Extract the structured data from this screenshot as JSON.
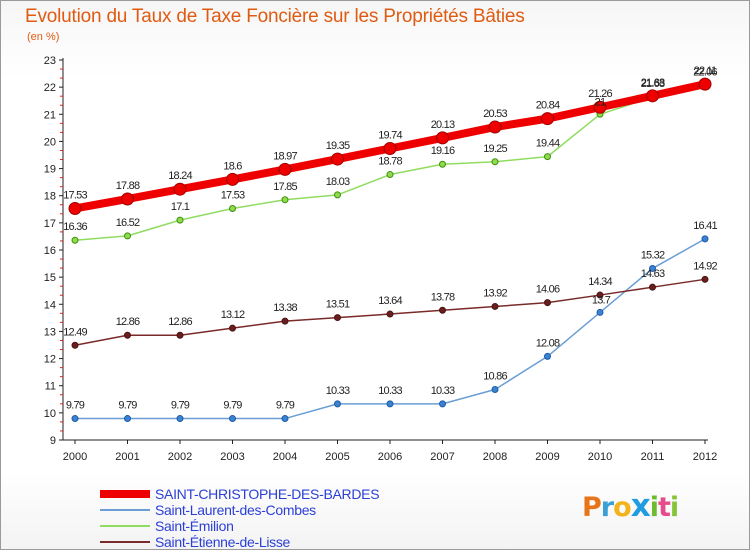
{
  "page": {
    "title": "Evolution du Taux de Taxe Foncière sur les Propriétés Bâties",
    "subtitle": "(en %)"
  },
  "logo": {
    "letters": [
      "P",
      "r",
      "o",
      "x",
      "i",
      "t",
      "i"
    ],
    "colors": [
      "#e8741a",
      "#3aa0d8",
      "#f2b31b",
      "#1f9de0",
      "#6dbb2f",
      "#e54c8c",
      "#88c43a"
    ]
  },
  "chart_data": {
    "type": "line",
    "x": [
      "2000",
      "2001",
      "2002",
      "2003",
      "2004",
      "2005",
      "2006",
      "2007",
      "2008",
      "2009",
      "2010",
      "2011",
      "2012"
    ],
    "ylim": [
      9,
      23
    ],
    "yticks": [
      "9",
      "10",
      "11",
      "12",
      "13",
      "14",
      "15",
      "16",
      "17",
      "18",
      "19",
      "20",
      "21",
      "22",
      "23"
    ],
    "grid": false,
    "legend_position": "bottom",
    "series": [
      {
        "name": "SAINT-CHRISTOPHE-DES-BARDES",
        "color": "#ee0000",
        "width": 8,
        "values": [
          17.53,
          17.88,
          18.24,
          18.6,
          18.97,
          19.35,
          19.74,
          20.13,
          20.53,
          20.84,
          21.26,
          21.68,
          22.11
        ],
        "labels": [
          "17.53",
          "17.88",
          "18.24",
          "18.6",
          "18.97",
          "19.35",
          "19.74",
          "20.13",
          "20.53",
          "20.84",
          "21.26",
          "21.68",
          "22.11"
        ]
      },
      {
        "name": "Saint-Laurent-des-Combes",
        "color": "#6a9ed4",
        "width": 1.5,
        "values": [
          9.79,
          9.79,
          9.79,
          9.79,
          9.79,
          10.33,
          10.33,
          10.33,
          10.86,
          12.08,
          13.7,
          15.32,
          16.41
        ],
        "labels": [
          "9.79",
          "9.79",
          "9.79",
          "9.79",
          "9.79",
          "10.33",
          "10.33",
          "10.33",
          "10.86",
          "12.08",
          "13.7",
          "15.32",
          "16.41"
        ]
      },
      {
        "name": "Saint-Émilion",
        "color": "#90dc60",
        "width": 1.5,
        "values": [
          16.36,
          16.52,
          17.1,
          17.53,
          17.85,
          18.03,
          18.78,
          19.16,
          19.25,
          19.44,
          21,
          21.63,
          22.06
        ],
        "labels": [
          "16.36",
          "16.52",
          "17.1",
          "17.53",
          "17.85",
          "18.03",
          "18.78",
          "19.16",
          "19.25",
          "19.44",
          "21",
          "21.63",
          "22.06"
        ]
      },
      {
        "name": "Saint-Étienne-de-Lisse",
        "color": "#7a2a2a",
        "width": 1.5,
        "values": [
          12.49,
          12.86,
          12.86,
          13.12,
          13.38,
          13.51,
          13.64,
          13.78,
          13.92,
          14.06,
          14.34,
          14.63,
          14.92
        ],
        "labels": [
          "12.49",
          "12.86",
          "12.86",
          "13.12",
          "13.38",
          "13.51",
          "13.64",
          "13.78",
          "13.92",
          "14.06",
          "14.34",
          "14.63",
          "14.92"
        ]
      }
    ]
  }
}
